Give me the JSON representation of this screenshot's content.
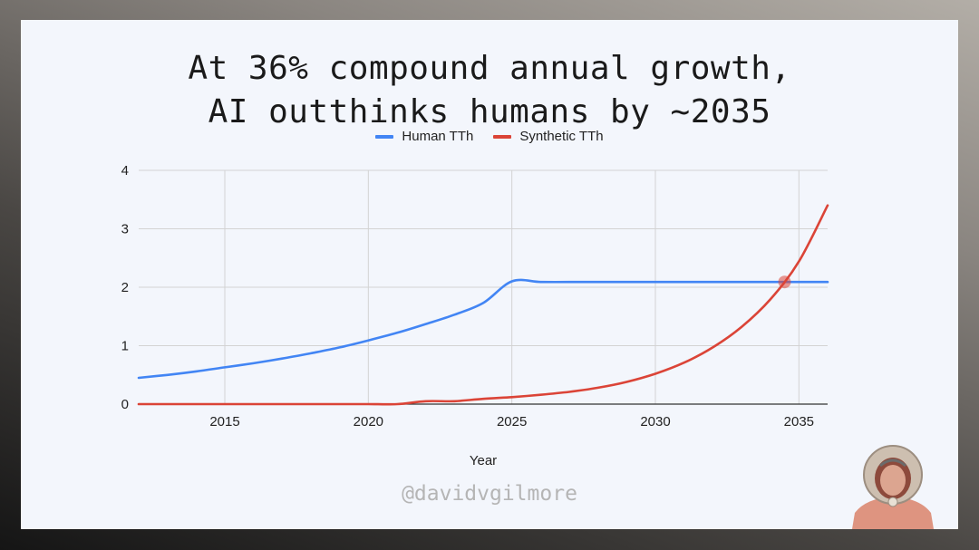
{
  "title_line1": "At 36% compound annual growth,",
  "title_line2": "AI outthinks humans by ~2035",
  "watermark": "@davidvgilmore",
  "colors": {
    "human": "#4285f4",
    "synthetic": "#db4437",
    "marker": "#db4437"
  },
  "chart_data": {
    "type": "line",
    "title": "At 36% compound annual growth, AI outthinks humans by ~2035",
    "xlabel": "Year",
    "ylabel": "",
    "xlim": [
      2012,
      2036
    ],
    "ylim": [
      0,
      4
    ],
    "x_ticks": [
      2015,
      2020,
      2025,
      2030,
      2035
    ],
    "y_ticks": [
      0,
      1,
      2,
      3,
      4
    ],
    "grid": true,
    "legend_position": "top",
    "series": [
      {
        "name": "Human TTh",
        "color": "#4285f4",
        "x": [
          2012,
          2013,
          2014,
          2015,
          2016,
          2017,
          2018,
          2019,
          2020,
          2021,
          2022,
          2023,
          2024,
          2025,
          2026,
          2027,
          2028,
          2029,
          2030,
          2031,
          2032,
          2033,
          2034,
          2035,
          2036
        ],
        "values": [
          0.45,
          0.5,
          0.56,
          0.63,
          0.7,
          0.78,
          0.87,
          0.97,
          1.09,
          1.22,
          1.37,
          1.53,
          1.73,
          2.1,
          2.09,
          2.09,
          2.09,
          2.09,
          2.09,
          2.09,
          2.09,
          2.09,
          2.09,
          2.09,
          2.09
        ]
      },
      {
        "name": "Synthetic TTh",
        "color": "#db4437",
        "x": [
          2012,
          2013,
          2014,
          2015,
          2016,
          2017,
          2018,
          2019,
          2020,
          2021,
          2022,
          2023,
          2024,
          2025,
          2026,
          2027,
          2028,
          2029,
          2030,
          2031,
          2032,
          2033,
          2034,
          2035,
          2036
        ],
        "values": [
          0,
          0,
          0,
          0,
          0,
          0,
          0,
          0,
          0,
          0,
          0.05,
          0.05,
          0.09,
          0.12,
          0.16,
          0.21,
          0.28,
          0.38,
          0.52,
          0.71,
          0.97,
          1.32,
          1.79,
          2.44,
          3.4
        ]
      }
    ],
    "annotations": [
      {
        "type": "crossover-marker",
        "x": 2034.5,
        "y": 2.09
      }
    ]
  }
}
